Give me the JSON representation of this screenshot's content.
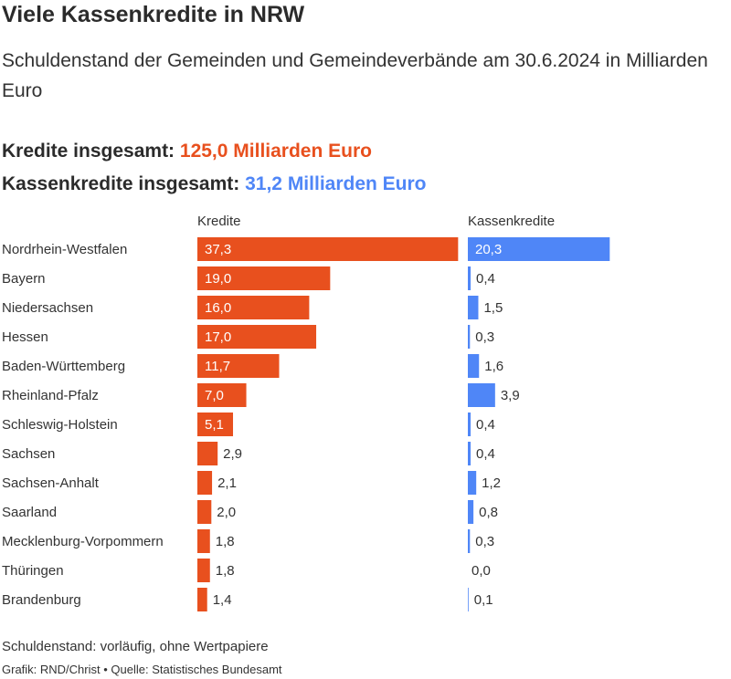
{
  "title": "Viele Kassenkredite in NRW",
  "subtitle": "Schuldenstand der Gemeinden und Gemeindeverbände am 30.6.2024 in Milliarden Euro",
  "totals": {
    "kredite_label": "Kredite insgesamt: ",
    "kredite_value": "125,0 Milliarden Euro",
    "kassen_label": "Kassenkredite insgesamt: ",
    "kassen_value": "31,2 Milliarden Euro"
  },
  "colors": {
    "kredite": "#e8501e",
    "kassenkredite": "#4f86f7"
  },
  "chart_data": {
    "type": "bar",
    "orientation": "horizontal",
    "categories": [
      "Nordrhein-Westfalen",
      "Bayern",
      "Niedersachsen",
      "Hessen",
      "Baden-Württemberg",
      "Rheinland-Pfalz",
      "Schleswig-Holstein",
      "Sachsen",
      "Sachsen-Anhalt",
      "Saarland",
      "Mecklenburg-Vorpommern",
      "Thüringen",
      "Brandenburg"
    ],
    "series": [
      {
        "name": "Kredite",
        "values": [
          37.3,
          19.0,
          16.0,
          17.0,
          11.7,
          7.0,
          5.1,
          2.9,
          2.1,
          2.0,
          1.8,
          1.8,
          1.4
        ],
        "labels": [
          "37,3",
          "19,0",
          "16,0",
          "17,0",
          "11,7",
          "7,0",
          "5,1",
          "2,9",
          "2,1",
          "2,0",
          "1,8",
          "1,8",
          "1,4"
        ]
      },
      {
        "name": "Kassenkredite",
        "values": [
          20.3,
          0.4,
          1.5,
          0.3,
          1.6,
          3.9,
          0.4,
          0.4,
          1.2,
          0.8,
          0.3,
          0.0,
          0.1
        ],
        "labels": [
          "20,3",
          "0,4",
          "1,5",
          "0,3",
          "1,6",
          "3,9",
          "0,4",
          "0,4",
          "1,2",
          "0,8",
          "0,3",
          "0,0",
          "0,1"
        ]
      }
    ]
  },
  "footnote": "Schuldenstand: vorläufig, ohne Wertpapiere",
  "source": "Grafik: RND/Christ • Quelle: Statistisches Bundesamt"
}
